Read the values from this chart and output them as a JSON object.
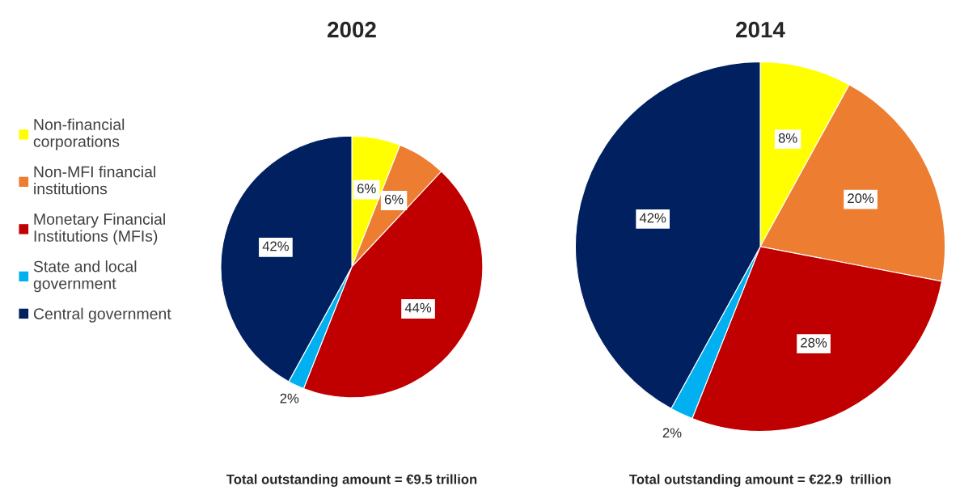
{
  "chart_data": [
    {
      "type": "pie",
      "title": "2002",
      "categories": [
        "Non-financial\ncorporations",
        "Non-MFI financial\ninstitutions",
        "Monetary Financial\nInstitutions (MFIs)",
        "State and local\ngovernment",
        "Central government"
      ],
      "values": [
        6,
        6,
        44,
        2,
        42
      ],
      "colors": [
        "#ffff00",
        "#ed7d31",
        "#c00000",
        "#00b0f0",
        "#002060"
      ],
      "value_labels": [
        "6%",
        "6%",
        "44%",
        "2%",
        "42%"
      ],
      "legend": "left",
      "annotations": [
        "Total outstanding amount = €9.5 trillion"
      ]
    },
    {
      "type": "pie",
      "title": "2014",
      "values": [
        8,
        20,
        28,
        2,
        42
      ],
      "colors": [
        "#ffff00",
        "#ed7d31",
        "#c00000",
        "#00b0f0",
        "#002060"
      ],
      "value_labels": [
        "8%",
        "20%",
        "28%",
        "2%",
        "42%"
      ],
      "annotations": [
        "Total outstanding amount = €22.9  trillion"
      ]
    }
  ]
}
